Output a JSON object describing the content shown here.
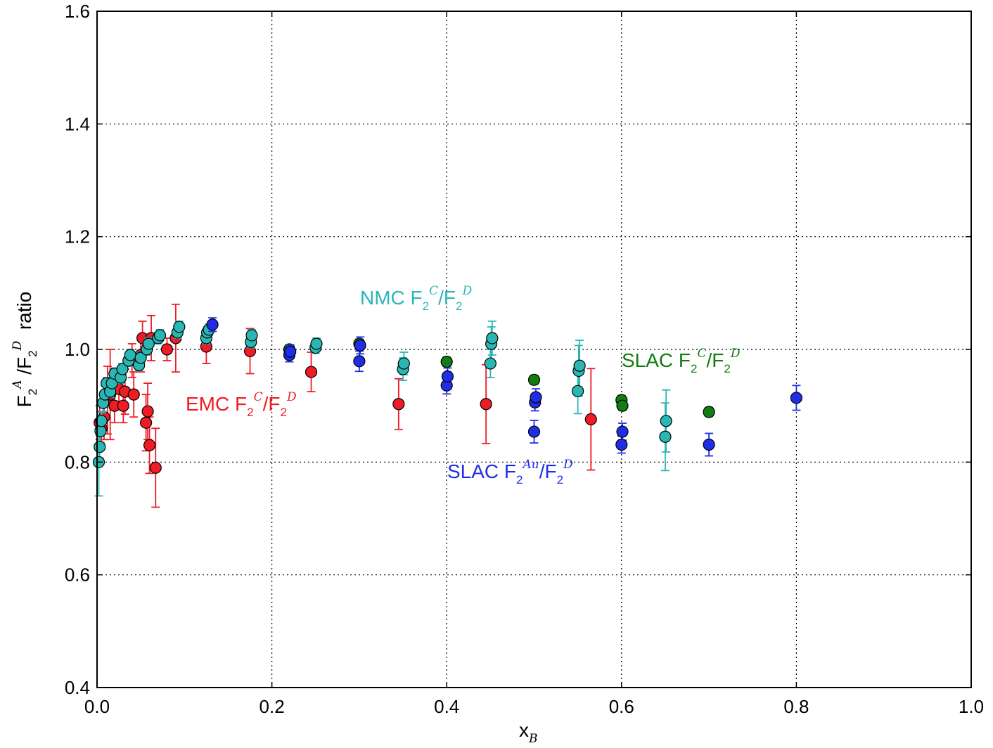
{
  "chart_data": {
    "type": "scatter",
    "title": "",
    "xlabel": "x",
    "xlabel_sub": "B",
    "ylabel_parts": {
      "pre": "F",
      "sub1": "2",
      "sup1": "A",
      "mid": " /F",
      "sub2": "2",
      "sup2": "D",
      "post": "  ratio"
    },
    "xlim": [
      0.0,
      1.0
    ],
    "ylim": [
      0.4,
      1.6
    ],
    "xticks": [
      "0.0",
      "0.2",
      "0.4",
      "0.6",
      "0.8",
      "1.0"
    ],
    "yticks": [
      "0.4",
      "0.6",
      "0.8",
      "1.0",
      "1.2",
      "1.4",
      "1.6"
    ],
    "grid": true,
    "colors": {
      "emc": "#ee1c25",
      "nmc": "#2ab7b4",
      "slac_c": "#107d10",
      "slac_au": "#1f2ee6"
    },
    "annotations": [
      {
        "series": "nmc",
        "label": {
          "pre": "NMC F",
          "sub1": "2",
          "sup1": "C",
          "mid": "/F",
          "sub2": "2",
          "sup2": "D"
        }
      },
      {
        "series": "emc",
        "label": {
          "pre": "EMC F",
          "sub1": "2",
          "sup1": "C",
          "mid": "/F",
          "sub2": "2",
          "sup2": "D"
        }
      },
      {
        "series": "slac_c",
        "label": {
          "pre": "SLAC F",
          "sub1": "2",
          "sup1": "C",
          "mid": "/F",
          "sub2": "2",
          "sup2": "D"
        }
      },
      {
        "series": "slac_au",
        "label": {
          "pre": "SLAC F",
          "sub1": "2",
          "sup1": "Au",
          "mid": "/F",
          "sub2": "2",
          "sup2": "D"
        }
      }
    ],
    "series": [
      {
        "name": "EMC F2C/F2D",
        "key": "emc",
        "points": [
          {
            "x": 0.003,
            "y": 0.87,
            "err": 0.03
          },
          {
            "x": 0.005,
            "y": 0.86,
            "err": 0.03
          },
          {
            "x": 0.008,
            "y": 0.88,
            "err": 0.04
          },
          {
            "x": 0.012,
            "y": 0.91,
            "err": 0.06
          },
          {
            "x": 0.015,
            "y": 0.92,
            "err": 0.08
          },
          {
            "x": 0.02,
            "y": 0.9,
            "err": 0.03
          },
          {
            "x": 0.025,
            "y": 0.93,
            "err": 0.03
          },
          {
            "x": 0.03,
            "y": 0.9,
            "err": 0.03
          },
          {
            "x": 0.032,
            "y": 0.925,
            "err": 0.04
          },
          {
            "x": 0.04,
            "y": 0.98,
            "err": 0.03
          },
          {
            "x": 0.042,
            "y": 0.92,
            "err": 0.04
          },
          {
            "x": 0.05,
            "y": 0.99,
            "err": 0.03
          },
          {
            "x": 0.052,
            "y": 1.02,
            "err": 0.03
          },
          {
            "x": 0.056,
            "y": 0.87,
            "err": 0.05
          },
          {
            "x": 0.058,
            "y": 0.89,
            "err": 0.05
          },
          {
            "x": 0.06,
            "y": 0.83,
            "err": 0.05
          },
          {
            "x": 0.062,
            "y": 1.02,
            "err": 0.04
          },
          {
            "x": 0.067,
            "y": 0.79,
            "err": 0.07
          },
          {
            "x": 0.08,
            "y": 1.0,
            "err": 0.02
          },
          {
            "x": 0.09,
            "y": 1.02,
            "err": 0.06
          },
          {
            "x": 0.125,
            "y": 1.005,
            "err": 0.03
          },
          {
            "x": 0.175,
            "y": 0.997,
            "err": 0.04
          },
          {
            "x": 0.245,
            "y": 0.96,
            "err": 0.035
          },
          {
            "x": 0.345,
            "y": 0.903,
            "err": 0.045
          },
          {
            "x": 0.445,
            "y": 0.903,
            "err": 0.07
          },
          {
            "x": 0.565,
            "y": 0.876,
            "err": 0.09
          }
        ]
      },
      {
        "name": "NMC F2C/F2D",
        "key": "nmc",
        "points": [
          {
            "x": 0.002,
            "y": 0.8,
            "err": 0.06
          },
          {
            "x": 0.003,
            "y": 0.827,
            "err": 0.02
          },
          {
            "x": 0.004,
            "y": 0.855,
            "err": 0.02
          },
          {
            "x": 0.005,
            "y": 0.873,
            "err": 0.015
          },
          {
            "x": 0.007,
            "y": 0.905,
            "err": 0.015
          },
          {
            "x": 0.009,
            "y": 0.92,
            "err": 0.015
          },
          {
            "x": 0.011,
            "y": 0.94,
            "err": 0.01
          },
          {
            "x": 0.015,
            "y": 0.925,
            "err": 0.01
          },
          {
            "x": 0.017,
            "y": 0.94,
            "err": 0.01
          },
          {
            "x": 0.02,
            "y": 0.957,
            "err": 0.01
          },
          {
            "x": 0.027,
            "y": 0.95,
            "err": 0.01
          },
          {
            "x": 0.029,
            "y": 0.965,
            "err": 0.01
          },
          {
            "x": 0.036,
            "y": 0.98,
            "err": 0.01
          },
          {
            "x": 0.038,
            "y": 0.99,
            "err": 0.01
          },
          {
            "x": 0.048,
            "y": 0.972,
            "err": 0.01
          },
          {
            "x": 0.05,
            "y": 0.985,
            "err": 0.01
          },
          {
            "x": 0.057,
            "y": 1.0,
            "err": 0.01
          },
          {
            "x": 0.059,
            "y": 1.01,
            "err": 0.01
          },
          {
            "x": 0.07,
            "y": 1.02,
            "err": 0.01
          },
          {
            "x": 0.072,
            "y": 1.025,
            "err": 0.01
          },
          {
            "x": 0.092,
            "y": 1.03,
            "err": 0.01
          },
          {
            "x": 0.094,
            "y": 1.04,
            "err": 0.01
          },
          {
            "x": 0.125,
            "y": 1.02,
            "err": 0.01
          },
          {
            "x": 0.126,
            "y": 1.03,
            "err": 0.01
          },
          {
            "x": 0.128,
            "y": 1.035,
            "err": 0.01
          },
          {
            "x": 0.176,
            "y": 1.013,
            "err": 0.01
          },
          {
            "x": 0.177,
            "y": 1.025,
            "err": 0.01
          },
          {
            "x": 0.25,
            "y": 1.003,
            "err": 0.01
          },
          {
            "x": 0.251,
            "y": 1.01,
            "err": 0.01
          },
          {
            "x": 0.35,
            "y": 0.965,
            "err": 0.02
          },
          {
            "x": 0.351,
            "y": 0.975,
            "err": 0.02
          },
          {
            "x": 0.45,
            "y": 0.975,
            "err": 0.025
          },
          {
            "x": 0.451,
            "y": 1.01,
            "err": 0.03
          },
          {
            "x": 0.452,
            "y": 1.02,
            "err": 0.03
          },
          {
            "x": 0.55,
            "y": 0.926,
            "err": 0.04
          },
          {
            "x": 0.551,
            "y": 0.962,
            "err": 0.045
          },
          {
            "x": 0.552,
            "y": 0.971,
            "err": 0.045
          },
          {
            "x": 0.65,
            "y": 0.845,
            "err": 0.06
          },
          {
            "x": 0.651,
            "y": 0.873,
            "err": 0.055
          }
        ]
      },
      {
        "name": "SLAC F2C/F2D",
        "key": "slac_c",
        "points": [
          {
            "x": 0.22,
            "y": 1.0,
            "err": 0.008
          },
          {
            "x": 0.3,
            "y": 1.01,
            "err": 0.008
          },
          {
            "x": 0.4,
            "y": 0.978,
            "err": 0.008
          },
          {
            "x": 0.5,
            "y": 0.946,
            "err": 0.008
          },
          {
            "x": 0.6,
            "y": 0.91,
            "err": 0.008
          },
          {
            "x": 0.601,
            "y": 0.9,
            "err": 0.008
          },
          {
            "x": 0.7,
            "y": 0.889,
            "err": 0.008
          }
        ]
      },
      {
        "name": "SLAC F2Au/F2D",
        "key": "slac_au",
        "points": [
          {
            "x": 0.132,
            "y": 1.044,
            "err": 0.012
          },
          {
            "x": 0.22,
            "y": 0.99,
            "err": 0.012
          },
          {
            "x": 0.221,
            "y": 0.996,
            "err": 0.012
          },
          {
            "x": 0.3,
            "y": 0.979,
            "err": 0.018
          },
          {
            "x": 0.301,
            "y": 1.007,
            "err": 0.015
          },
          {
            "x": 0.4,
            "y": 0.936,
            "err": 0.015
          },
          {
            "x": 0.401,
            "y": 0.952,
            "err": 0.015
          },
          {
            "x": 0.5,
            "y": 0.854,
            "err": 0.02
          },
          {
            "x": 0.501,
            "y": 0.906,
            "err": 0.015
          },
          {
            "x": 0.502,
            "y": 0.915,
            "err": 0.015
          },
          {
            "x": 0.6,
            "y": 0.831,
            "err": 0.015
          },
          {
            "x": 0.601,
            "y": 0.854,
            "err": 0.015
          },
          {
            "x": 0.7,
            "y": 0.831,
            "err": 0.02
          },
          {
            "x": 0.8,
            "y": 0.914,
            "err": 0.022
          }
        ]
      }
    ]
  }
}
